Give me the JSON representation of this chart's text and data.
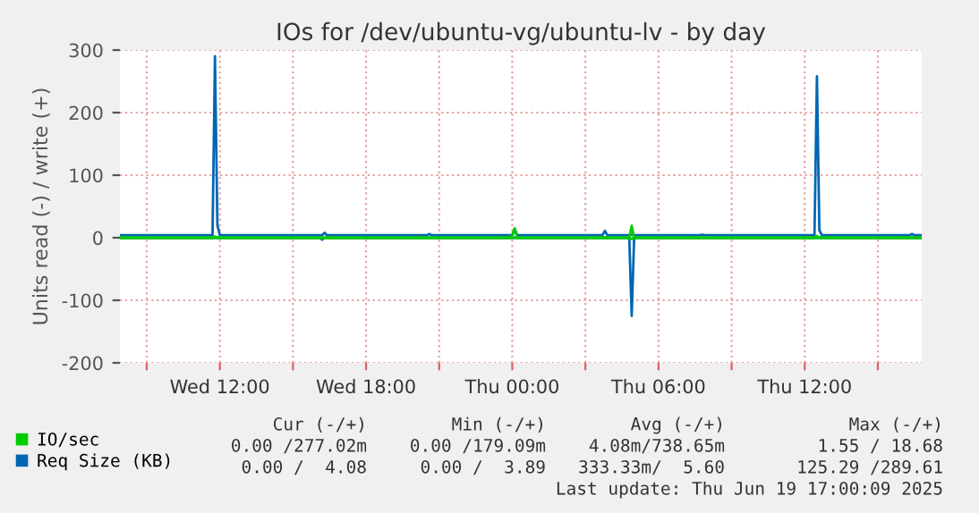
{
  "chart_data": {
    "type": "line",
    "title": "IOs for /dev/ubuntu-vg/ubuntu-lv - by day",
    "ylabel": "Units read (-) / write (+)",
    "series": [
      {
        "name": "Req Size (KB)",
        "color": "#0066b3",
        "x": [
          "2025-06-18T07:54",
          "2025-06-18T11:42",
          "2025-06-18T11:48",
          "2025-06-18T11:54",
          "2025-06-18T12:00",
          "2025-06-18T16:12",
          "2025-06-18T16:18",
          "2025-06-18T16:24",
          "2025-06-18T20:30",
          "2025-06-18T20:36",
          "2025-06-18T20:42",
          "2025-06-19T00:00",
          "2025-06-19T00:06",
          "2025-06-19T00:12",
          "2025-06-19T03:42",
          "2025-06-19T03:48",
          "2025-06-19T03:54",
          "2025-06-19T04:48",
          "2025-06-19T04:54",
          "2025-06-19T05:00",
          "2025-06-19T07:42",
          "2025-06-19T07:48",
          "2025-06-19T07:54",
          "2025-06-19T12:24",
          "2025-06-19T12:30",
          "2025-06-19T12:36",
          "2025-06-19T12:42",
          "2025-06-19T16:18",
          "2025-06-19T16:24",
          "2025-06-19T16:30",
          "2025-06-19T16:48"
        ],
        "values": [
          4,
          4,
          290,
          20,
          4,
          4,
          8,
          4,
          4,
          6,
          4,
          4,
          14,
          4,
          4,
          11,
          4,
          4,
          5,
          4,
          4,
          5,
          4,
          4,
          258,
          12,
          4,
          4,
          6,
          4,
          4
        ]
      },
      {
        "color": "#0066b3",
        "x": [
          "2025-06-18T07:54",
          "2025-06-18T16:06",
          "2025-06-18T16:12",
          "2025-06-18T16:18",
          "2025-06-19T04:48",
          "2025-06-19T04:54",
          "2025-06-19T05:00",
          "2025-06-19T16:48"
        ],
        "values": [
          0,
          0,
          -3,
          0,
          0,
          -125,
          0,
          0
        ]
      },
      {
        "name": "IO/sec",
        "color": "#00cc00",
        "x": [
          "2025-06-18T07:54",
          "2025-06-18T11:42",
          "2025-06-18T11:48",
          "2025-06-18T11:54",
          "2025-06-18T23:54",
          "2025-06-19T00:00",
          "2025-06-19T00:06",
          "2025-06-19T00:12",
          "2025-06-19T04:48",
          "2025-06-19T04:54",
          "2025-06-19T05:00",
          "2025-06-19T12:24",
          "2025-06-19T12:30",
          "2025-06-19T12:36",
          "2025-06-19T16:48"
        ],
        "values": [
          0,
          0,
          2,
          0,
          0,
          5,
          15,
          0,
          0,
          19,
          0,
          0,
          3,
          0,
          0
        ]
      },
      {
        "color": "#00cc00",
        "x": [
          "2025-06-18T07:54",
          "2025-06-19T04:48",
          "2025-06-19T04:54",
          "2025-06-19T05:00",
          "2025-06-19T16:48"
        ],
        "values": [
          0,
          0,
          -2,
          0,
          0
        ]
      }
    ],
    "xlim": [
      "2025-06-18T07:54",
      "2025-06-19T16:48"
    ],
    "xticks": [
      {
        "value": "2025-06-18T09:00",
        "label": null
      },
      {
        "value": "2025-06-18T12:00",
        "label": "Wed 12:00"
      },
      {
        "value": "2025-06-18T15:00",
        "label": null
      },
      {
        "value": "2025-06-18T18:00",
        "label": "Wed 18:00"
      },
      {
        "value": "2025-06-18T21:00",
        "label": null
      },
      {
        "value": "2025-06-19T00:00",
        "label": "Thu 00:00"
      },
      {
        "value": "2025-06-19T03:00",
        "label": null
      },
      {
        "value": "2025-06-19T06:00",
        "label": "Thu 06:00"
      },
      {
        "value": "2025-06-19T09:00",
        "label": null
      },
      {
        "value": "2025-06-19T12:00",
        "label": "Thu 12:00"
      },
      {
        "value": "2025-06-19T15:00",
        "label": null
      }
    ],
    "ylim": [
      -200,
      300
    ],
    "yticks": [
      -200,
      -100,
      0,
      100,
      200,
      300
    ],
    "grid": true,
    "legend": "bottom left",
    "marker": "none",
    "line_style": "solid",
    "annotations": [
      "Cur (-/+)",
      "Min (-/+)",
      "Avg (-/+)",
      "Max (-/+)",
      "0.00 /277.02m",
      "0.00 /179.09m",
      "4.08m/738.65m",
      "1.55 / 18.68",
      "0.00 /  4.08",
      "0.00 /  3.89",
      "333.33m/  5.60",
      "125.29 /289.61",
      "Last update: Thu Jun 19 17:00:09 2025"
    ]
  }
}
